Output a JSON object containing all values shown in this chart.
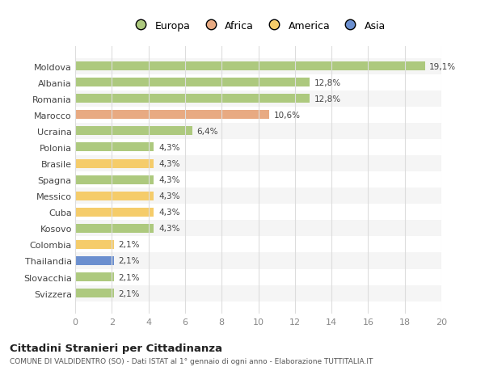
{
  "categories": [
    "Svizzera",
    "Slovacchia",
    "Thailandia",
    "Colombia",
    "Kosovo",
    "Cuba",
    "Messico",
    "Spagna",
    "Brasile",
    "Polonia",
    "Ucraina",
    "Marocco",
    "Romania",
    "Albania",
    "Moldova"
  ],
  "values": [
    2.1,
    2.1,
    2.1,
    2.1,
    4.3,
    4.3,
    4.3,
    4.3,
    4.3,
    4.3,
    6.4,
    10.6,
    12.8,
    12.8,
    19.1
  ],
  "labels": [
    "2,1%",
    "2,1%",
    "2,1%",
    "2,1%",
    "4,3%",
    "4,3%",
    "4,3%",
    "4,3%",
    "4,3%",
    "4,3%",
    "6,4%",
    "10,6%",
    "12,8%",
    "12,8%",
    "19,1%"
  ],
  "colors": [
    "#adc97e",
    "#adc97e",
    "#6b8fcf",
    "#f5cc6a",
    "#adc97e",
    "#f5cc6a",
    "#f5cc6a",
    "#adc97e",
    "#f5cc6a",
    "#adc97e",
    "#adc97e",
    "#e8aa82",
    "#adc97e",
    "#adc97e",
    "#adc97e"
  ],
  "legend_labels": [
    "Europa",
    "Africa",
    "America",
    "Asia"
  ],
  "legend_colors": [
    "#adc97e",
    "#e8aa82",
    "#f5cc6a",
    "#6b8fcf"
  ],
  "title": "Cittadini Stranieri per Cittadinanza",
  "subtitle": "COMUNE DI VALDIDENTRO (SO) - Dati ISTAT al 1° gennaio di ogni anno - Elaborazione TUTTITALIA.IT",
  "xlim": [
    0,
    20
  ],
  "xticks": [
    0,
    2,
    4,
    6,
    8,
    10,
    12,
    14,
    16,
    18,
    20
  ],
  "bg_color": "#ffffff",
  "grid_color": "#dddddd",
  "row_alt_color": "#f5f5f5"
}
